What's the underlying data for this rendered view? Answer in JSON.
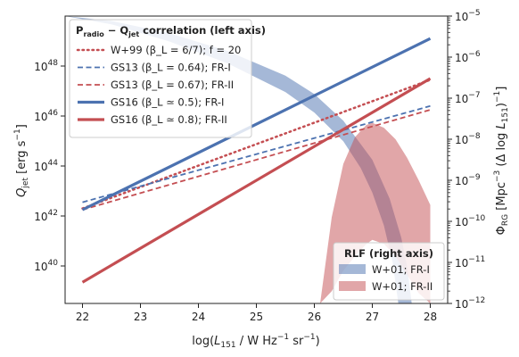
{
  "chart_data": {
    "type": "line",
    "x_axis": {
      "label": "log(L_151 / W Hz^-1 sr^-1)",
      "range": [
        21.7,
        28.3
      ],
      "ticks": [
        22,
        23,
        24,
        25,
        26,
        27,
        28
      ],
      "tick_labels": [
        "22",
        "23",
        "24",
        "25",
        "26",
        "27",
        "28"
      ]
    },
    "left_axis": {
      "label": "Q_jet [erg s^-1]",
      "scale": "log",
      "range_log": [
        38.5,
        50.0
      ],
      "ticks": [
        40,
        42,
        44,
        46,
        48
      ],
      "tick_labels": [
        "10^40",
        "10^42",
        "10^44",
        "10^46",
        "10^48"
      ]
    },
    "right_axis": {
      "label": "Φ_RG [Mpc^-3 (Δ log L_151)^-1]",
      "scale": "log",
      "range_log": [
        -12,
        -5
      ],
      "ticks": [
        -12,
        -11,
        -10,
        -9,
        -8,
        -7,
        -6,
        -5
      ],
      "tick_labels": [
        "10^-12",
        "10^-11",
        "10^-10",
        "10^-9",
        "10^-8",
        "10^-7",
        "10^-6",
        "10^-5"
      ]
    },
    "legend_left": {
      "title": "P_radio − Q_jet correlation (left axis)",
      "placement": "top-left"
    },
    "legend_right": {
      "title": "RLF (right axis)",
      "placement": "bottom-right"
    },
    "series": [
      {
        "name": "W+99 (β_L = 6/7); f = 20",
        "axis": "left",
        "color": "#c44e52",
        "style": "dotted",
        "width": 2.5,
        "x": [
          22,
          28
        ],
        "y_log": [
          42.3,
          47.45
        ]
      },
      {
        "name": "GS13 (β_L = 0.64); FR-I",
        "axis": "left",
        "color": "#4c72b0",
        "style": "dashed",
        "width": 1.8,
        "x": [
          22,
          28
        ],
        "y_log": [
          42.55,
          46.4
        ]
      },
      {
        "name": "GS13 (β_L = 0.67); FR-II",
        "axis": "left",
        "color": "#c44e52",
        "style": "dashed",
        "width": 1.8,
        "x": [
          22,
          28
        ],
        "y_log": [
          42.25,
          46.25
        ]
      },
      {
        "name": "GS16 (β_L ≃ 0.5); FR-I",
        "axis": "left",
        "color": "#4c72b0",
        "style": "solid",
        "width": 3.2,
        "x": [
          22,
          28
        ],
        "y_log": [
          42.25,
          49.1
        ]
      },
      {
        "name": "GS16 (β_L ≃ 0.8); FR-II",
        "axis": "left",
        "color": "#c44e52",
        "style": "solid",
        "width": 3.2,
        "x": [
          22,
          28
        ],
        "y_log": [
          39.35,
          47.5
        ]
      }
    ],
    "bands": [
      {
        "name": "W+01; FR-I",
        "axis": "right",
        "color": "#4c72b0",
        "opacity": 0.5,
        "upper": {
          "x": [
            21.7,
            22.5,
            23.5,
            24.5,
            25.5,
            26.0,
            26.5,
            27.0,
            27.3,
            27.5,
            27.6,
            27.68
          ],
          "y_log": [
            -5.0,
            -5.12,
            -5.42,
            -5.85,
            -6.45,
            -6.9,
            -7.55,
            -8.5,
            -9.45,
            -10.4,
            -11.1,
            -12.0
          ]
        },
        "lower": {
          "x": [
            21.7,
            22.5,
            23.5,
            24.5,
            25.5,
            26.0,
            26.5,
            26.8,
            27.0,
            27.2,
            27.35,
            27.45
          ],
          "y_log": [
            -5.0,
            -5.2,
            -5.62,
            -6.15,
            -6.85,
            -7.35,
            -8.05,
            -8.7,
            -9.3,
            -10.1,
            -11.0,
            -12.0
          ]
        }
      },
      {
        "name": "W+01; FR-II",
        "axis": "right",
        "color": "#c44e52",
        "opacity": 0.5,
        "upper": {
          "x": [
            26.1,
            26.3,
            26.5,
            26.7,
            26.9,
            27.0,
            27.2,
            27.4,
            27.6,
            27.8,
            28.0
          ],
          "y_log": [
            -12.0,
            -9.9,
            -8.6,
            -7.95,
            -7.65,
            -7.6,
            -7.72,
            -8.0,
            -8.45,
            -9.0,
            -9.6
          ]
        },
        "lower": {
          "x": [
            26.1,
            26.3,
            26.5,
            26.7,
            26.9,
            27.0,
            27.2,
            27.4,
            27.6,
            27.8,
            28.0
          ],
          "y_log": [
            -12.0,
            -11.7,
            -11.2,
            -10.85,
            -10.55,
            -10.45,
            -10.55,
            -10.85,
            -11.3,
            -11.75,
            -12.0
          ]
        }
      }
    ],
    "grid": false
  }
}
